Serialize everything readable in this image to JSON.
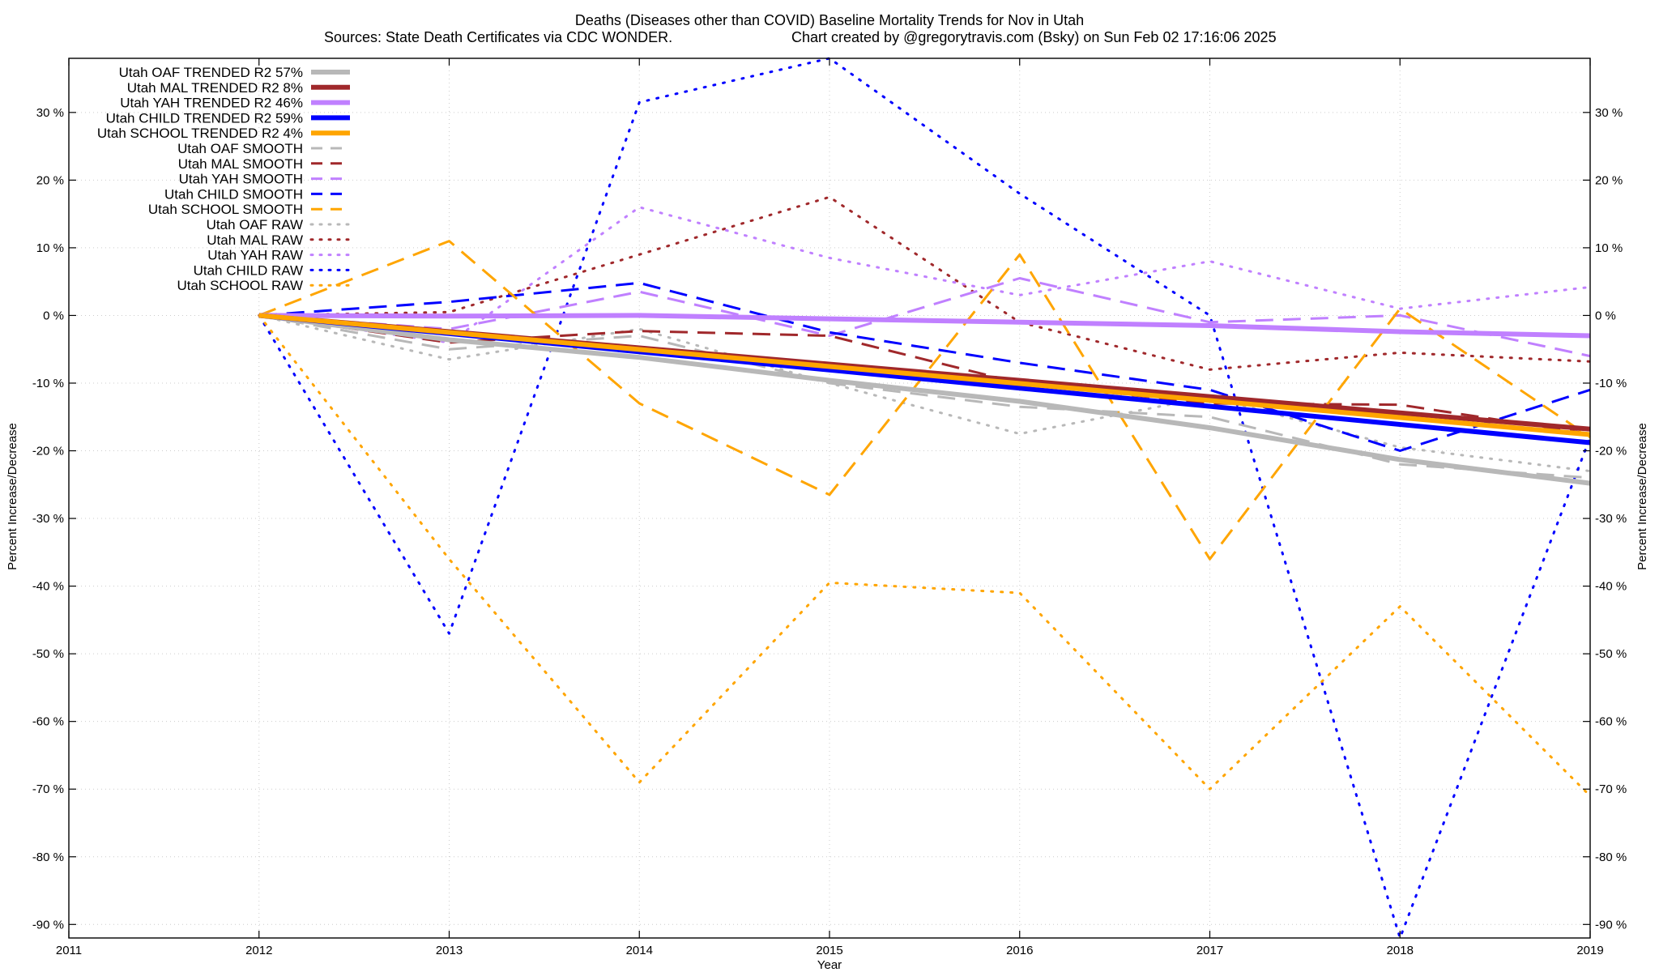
{
  "chart_data": {
    "type": "line",
    "title": "Deaths (Diseases other than COVID)  Baseline Mortality Trends for Nov in Utah",
    "subtitle_left": "Sources: State Death Certificates via CDC WONDER.",
    "subtitle_right": "Chart created by @gregorytravis.com (Bsky) on Sun Feb 02 17:16:06 2025",
    "xlabel": "Year",
    "ylabel": "Percent Increase/Decrease",
    "y2label": "Percent Increase/Decrease",
    "xlim": [
      2011,
      2019
    ],
    "ylim": [
      -92,
      38
    ],
    "xticks": [
      {
        "value": 2011,
        "label": "2011"
      },
      {
        "value": 2012,
        "label": "2012"
      },
      {
        "value": 2013,
        "label": "2013"
      },
      {
        "value": 2014,
        "label": "2014"
      },
      {
        "value": 2015,
        "label": "2015"
      },
      {
        "value": 2016,
        "label": "2016"
      },
      {
        "value": 2017,
        "label": "2017"
      },
      {
        "value": 2018,
        "label": "2018"
      },
      {
        "value": 2019,
        "label": "2019"
      }
    ],
    "yticks": [
      {
        "value": 30,
        "label": "30 %"
      },
      {
        "value": 20,
        "label": "20 %"
      },
      {
        "value": 10,
        "label": "10 %"
      },
      {
        "value": 0,
        "label": "0 %"
      },
      {
        "value": -10,
        "label": "-10 %"
      },
      {
        "value": -20,
        "label": "-20 %"
      },
      {
        "value": -30,
        "label": "-30 %"
      },
      {
        "value": -40,
        "label": "-40 %"
      },
      {
        "value": -50,
        "label": "-50 %"
      },
      {
        "value": -60,
        "label": "-60 %"
      },
      {
        "value": -70,
        "label": "-70 %"
      },
      {
        "value": -80,
        "label": "-80 %"
      },
      {
        "value": -90,
        "label": "-90 %"
      }
    ],
    "grid": true,
    "legend_position": "top-left",
    "series": [
      {
        "name": "Utah OAF TRENDED R2  57%",
        "style": "solid",
        "color": "#b8b8b8",
        "x": [
          2012,
          2013,
          2014,
          2015,
          2016,
          2017,
          2018,
          2019
        ],
        "y": [
          0,
          -3.6,
          -6.2,
          -9.6,
          -12.7,
          -16.6,
          -21.3,
          -24.8
        ]
      },
      {
        "name": "Utah MAL TRENDED R2  8%",
        "style": "solid",
        "color": "#a0282b",
        "x": [
          2012,
          2019
        ],
        "y": [
          0,
          -16.8
        ]
      },
      {
        "name": "Utah YAH TRENDED R2  46%",
        "style": "solid",
        "color": "#c080ff",
        "x": [
          2012,
          2013,
          2014,
          2015,
          2016,
          2017,
          2018,
          2019
        ],
        "y": [
          0,
          -0.1,
          0,
          -0.5,
          -1.0,
          -1.5,
          -2.4,
          -3.0
        ]
      },
      {
        "name": "Utah CHILD TRENDED R2  59%",
        "style": "solid",
        "color": "#0000ff",
        "x": [
          2012,
          2019
        ],
        "y": [
          0,
          -18.8
        ]
      },
      {
        "name": "Utah SCHOOL TRENDED R2   4%",
        "style": "solid",
        "color": "#ffa500",
        "x": [
          2012,
          2019
        ],
        "y": [
          0,
          -17.6
        ]
      },
      {
        "name": "Utah OAF SMOOTH",
        "style": "dashed",
        "color": "#b8b8b8",
        "x": [
          2012,
          2013,
          2014,
          2015,
          2016,
          2017,
          2018,
          2019
        ],
        "y": [
          0,
          -5,
          -3,
          -10,
          -13.5,
          -15,
          -22,
          -24
        ]
      },
      {
        "name": "Utah MAL SMOOTH",
        "style": "dashed",
        "color": "#a0282b",
        "x": [
          2012,
          2013,
          2014,
          2015,
          2016,
          2017,
          2018,
          2019
        ],
        "y": [
          0,
          -4,
          -2.3,
          -3,
          -10,
          -13,
          -13.2,
          -17.5
        ]
      },
      {
        "name": "Utah YAH SMOOTH",
        "style": "dashed",
        "color": "#c080ff",
        "x": [
          2012,
          2013,
          2014,
          2015,
          2016,
          2017,
          2018,
          2019
        ],
        "y": [
          0,
          -2,
          3.5,
          -3,
          5.5,
          -1,
          0,
          -6
        ]
      },
      {
        "name": "Utah CHILD SMOOTH",
        "style": "dashed",
        "color": "#0000ff",
        "x": [
          2012,
          2013,
          2014,
          2015,
          2016,
          2017,
          2018,
          2019
        ],
        "y": [
          0,
          2,
          4.8,
          -2.5,
          -7,
          -11,
          -20,
          -11
        ]
      },
      {
        "name": "Utah SCHOOL SMOOTH",
        "style": "dashed",
        "color": "#ffa500",
        "x": [
          2012,
          2013,
          2014,
          2015,
          2016,
          2017,
          2018,
          2019
        ],
        "y": [
          0,
          11,
          -13,
          -26.5,
          9,
          -36,
          1,
          -18
        ]
      },
      {
        "name": "Utah OAF RAW",
        "style": "dotted",
        "color": "#b8b8b8",
        "x": [
          2012,
          2013,
          2014,
          2015,
          2016,
          2017,
          2018,
          2019
        ],
        "y": [
          0,
          -6.5,
          -2,
          -10,
          -17.5,
          -12,
          -19.5,
          -23
        ]
      },
      {
        "name": "Utah MAL RAW",
        "style": "dotted",
        "color": "#a0282b",
        "x": [
          2012,
          2013,
          2014,
          2015,
          2016,
          2017,
          2018,
          2019
        ],
        "y": [
          0,
          0.5,
          9,
          17.5,
          -1,
          -8,
          -5.5,
          -6.8
        ]
      },
      {
        "name": "Utah YAH RAW",
        "style": "dotted",
        "color": "#c080ff",
        "x": [
          2012,
          2013,
          2014,
          2015,
          2016,
          2017,
          2018,
          2019
        ],
        "y": [
          0,
          -4,
          16,
          8.5,
          3,
          8,
          1,
          4.2
        ]
      },
      {
        "name": "Utah CHILD RAW",
        "style": "dotted",
        "color": "#0000ff",
        "x": [
          2012,
          2013,
          2014,
          2015,
          2016,
          2017,
          2018,
          2019
        ],
        "y": [
          0,
          -47,
          31.5,
          38,
          18,
          0,
          -92,
          -18
        ]
      },
      {
        "name": "Utah SCHOOL RAW",
        "style": "dotted",
        "color": "#ffa500",
        "x": [
          2012,
          2013,
          2014,
          2015,
          2016,
          2017,
          2018,
          2019
        ],
        "y": [
          0,
          -36,
          -69,
          -39.5,
          -41,
          -70,
          -43,
          -71
        ]
      }
    ]
  }
}
